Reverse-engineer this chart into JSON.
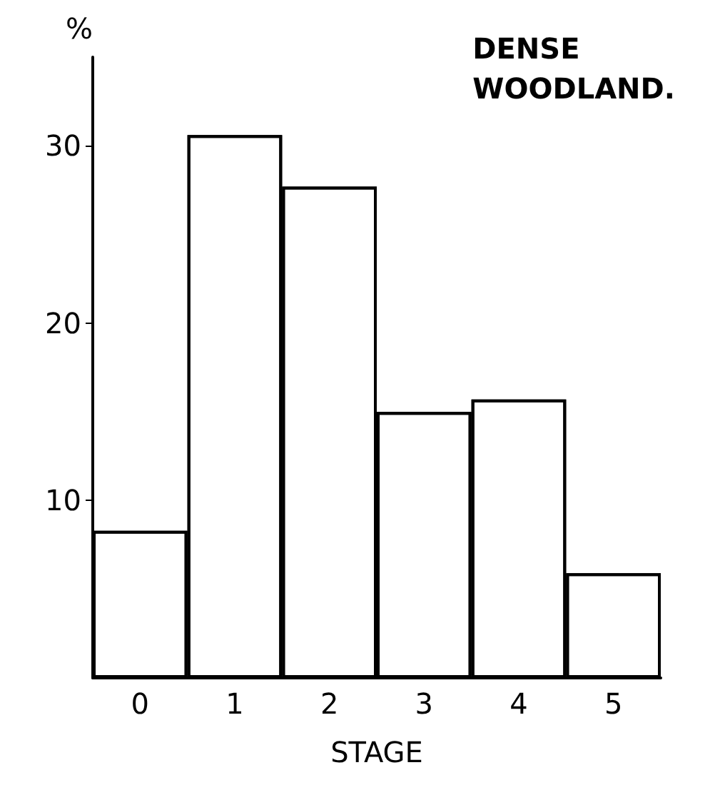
{
  "chart_data": {
    "type": "bar",
    "title": "DENSE\nWOODLAND.",
    "xlabel": "STAGE",
    "ylabel": "%",
    "categories": [
      "0",
      "1",
      "2",
      "3",
      "4",
      "5"
    ],
    "values": [
      8.3,
      30.6,
      27.7,
      15.0,
      15.7,
      5.9
    ],
    "color": "#ffffff",
    "ylim": [
      0,
      35
    ],
    "yticks": [
      10,
      20,
      30
    ],
    "grid": false
  }
}
